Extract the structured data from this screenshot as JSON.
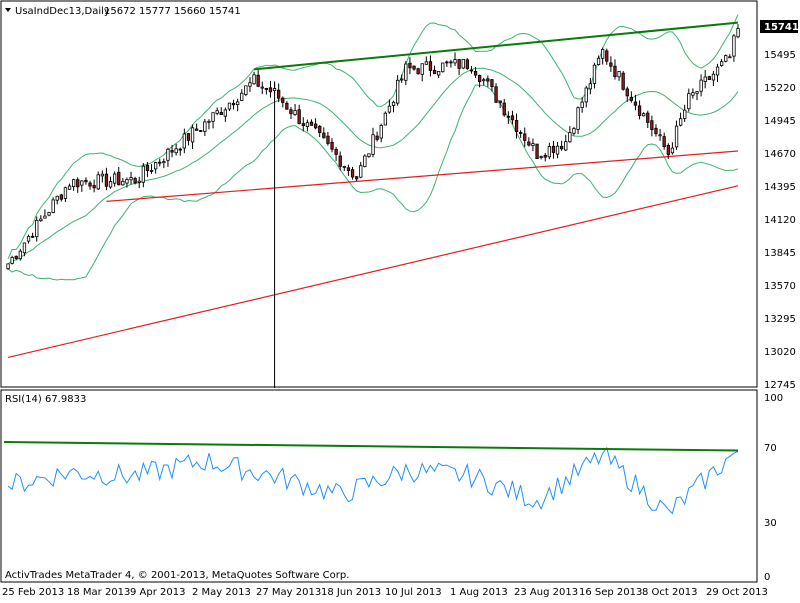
{
  "header": {
    "symbol_timeframe": "UsaIndDec13,Daily",
    "ohlc": "15672 15777 15660 15741",
    "price_badge": "15741"
  },
  "price_axis": {
    "ticks": [
      "15495",
      "15220",
      "14945",
      "14670",
      "14395",
      "14120",
      "13845",
      "13570",
      "13295",
      "13020",
      "12745"
    ]
  },
  "rsi_panel": {
    "label": "RSI(14) 67.9833",
    "levels": [
      "100",
      "70",
      "30",
      "0"
    ]
  },
  "time_axis": {
    "labels": [
      "25 Feb 2013",
      "18 Mar 2013",
      "9 Apr 2013",
      "2 May 2013",
      "27 May 2013",
      "18 Jun 2013",
      "10 Jul 2013",
      "1 Aug 2013",
      "23 Aug 2013",
      "16 Sep 2013",
      "8 Oct 2013",
      "29 Oct 2013"
    ]
  },
  "footer": {
    "copyright": "ActivTrades MetaTrader 4, © 2001-2013, MetaQuotes Software Corp."
  },
  "colors": {
    "background": "#ffffff",
    "candle_up": "#ffffff",
    "candle_down": "#8b1a1a",
    "bollinger": "#3cb371",
    "trend_green": "#0a7a0a",
    "trend_red": "#e02020",
    "rsi_line": "#1e90ff",
    "price_badge_bg": "#000000",
    "price_badge_fg": "#ffffff"
  },
  "chart_data": {
    "type": "candlestick",
    "instrument": "UsaIndDec13",
    "timeframe": "Daily",
    "x_range": [
      "25 Feb 2013",
      "29 Oct 2013"
    ],
    "ylim": [
      12700,
      15850
    ],
    "last": {
      "open": 15672,
      "high": 15777,
      "low": 15660,
      "close": 15741
    },
    "anchors": [
      {
        "x": "25 Feb 2013",
        "close": 13780
      },
      {
        "x": "18 Mar 2013",
        "close": 14460
      },
      {
        "x": "9 Apr 2013",
        "close": 14480
      },
      {
        "x": "2 May 2013",
        "close": 14950
      },
      {
        "x": "20 May 2013",
        "close": 15300
      },
      {
        "x": "27 May 2013",
        "close": 15200
      },
      {
        "x": "18 Jun 2013",
        "close": 14650
      },
      {
        "x": "24 Jun 2013",
        "close": 14500
      },
      {
        "x": "10 Jul 2013",
        "close": 15400
      },
      {
        "x": "1 Aug 2013",
        "close": 15450
      },
      {
        "x": "23 Aug 2013",
        "close": 14700
      },
      {
        "x": "3 Sep 2013",
        "close": 14800
      },
      {
        "x": "16 Sep 2013",
        "close": 15550
      },
      {
        "x": "8 Oct 2013",
        "close": 14700
      },
      {
        "x": "15 Oct 2013",
        "close": 15150
      },
      {
        "x": "29 Oct 2013",
        "close": 15500
      },
      {
        "x": "31 Oct 2013",
        "close": 15741
      }
    ],
    "rsi": {
      "period": 14,
      "last": 67.9833,
      "ylim": [
        0,
        100
      ],
      "levels": [
        30,
        70
      ],
      "anchors": [
        {
          "x": "25 Feb 2013",
          "value": 50
        },
        {
          "x": "18 Mar 2013",
          "value": 57
        },
        {
          "x": "9 Apr 2013",
          "value": 55
        },
        {
          "x": "2 May 2013",
          "value": 63
        },
        {
          "x": "27 May 2013",
          "value": 55
        },
        {
          "x": "18 Jun 2013",
          "value": 45
        },
        {
          "x": "10 Jul 2013",
          "value": 58
        },
        {
          "x": "1 Aug 2013",
          "value": 55
        },
        {
          "x": "23 Aug 2013",
          "value": 42
        },
        {
          "x": "16 Sep 2013",
          "value": 66
        },
        {
          "x": "8 Oct 2013",
          "value": 35
        },
        {
          "x": "29 Oct 2013",
          "value": 65
        },
        {
          "x": "31 Oct 2013",
          "value": 68
        }
      ]
    },
    "trendlines": [
      {
        "color": "green",
        "from": {
          "x": "20 May 2013",
          "y": 15400
        },
        "to": {
          "x": "31 Oct 2013",
          "y": 15790
        }
      },
      {
        "color": "red",
        "from": {
          "x": "29 Mar 2013",
          "y": 14300
        },
        "to": {
          "x": "31 Oct 2013",
          "y": 14720
        }
      },
      {
        "color": "red",
        "from": {
          "x": "25 Feb 2013",
          "y": 13000
        },
        "to": {
          "x": "31 Oct 2013",
          "y": 14430
        }
      }
    ],
    "markers": [
      {
        "type": "vertical-line",
        "x": "27 May 2013",
        "y_low": 12745,
        "y_high": 15300
      }
    ]
  }
}
